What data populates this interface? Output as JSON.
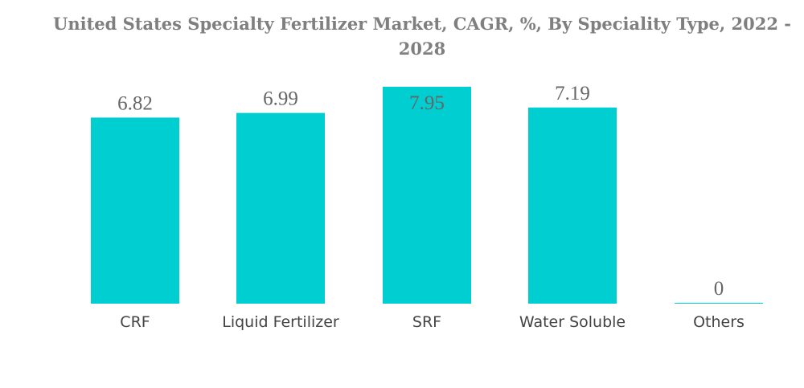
{
  "chart_data": {
    "type": "bar",
    "title": "United States Specialty Fertilizer Market, CAGR, %, By Speciality Type, 2022 - 2028",
    "categories": [
      "CRF",
      "Liquid Fertilizer",
      "SRF",
      "Water Soluble",
      "Others"
    ],
    "values": [
      6.82,
      6.99,
      7.95,
      7.19,
      0
    ],
    "value_labels": [
      "6.82",
      "6.99",
      "7.95",
      "7.19",
      "0"
    ],
    "xlabel": "",
    "ylabel": "",
    "ylim": [
      0,
      7.95
    ],
    "grid": false,
    "legend": "none",
    "bar_color": "#00CED1"
  }
}
